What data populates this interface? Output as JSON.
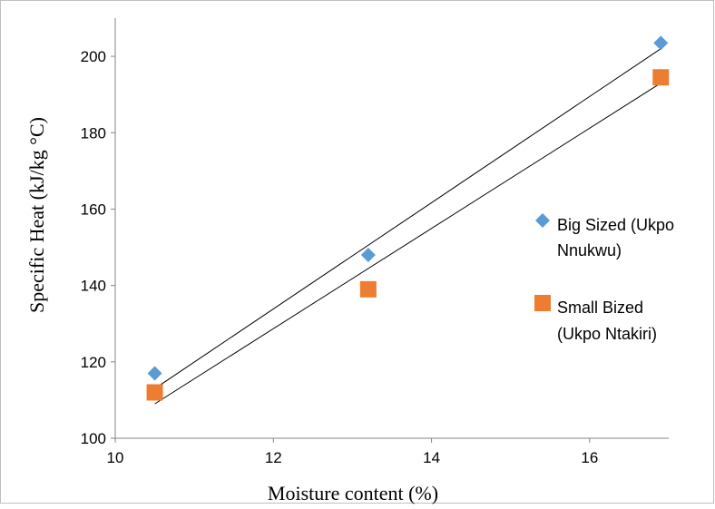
{
  "chart_data": {
    "type": "scatter",
    "title": "",
    "xlabel": "Moisture content (%)",
    "ylabel": "Specific Heat (kJ/kg °C)",
    "xlim": [
      10,
      17
    ],
    "ylim": [
      100,
      210
    ],
    "x_ticks": [
      "10",
      "12",
      "14",
      "16"
    ],
    "y_ticks": [
      "100",
      "120",
      "140",
      "160",
      "180",
      "200"
    ],
    "grid": false,
    "legend_position": "right",
    "series": [
      {
        "name": "Big Sized (Ukpo Nnukwu)",
        "legend_lines": [
          "Big Sized (Ukpo",
          "Nnukwu)"
        ],
        "marker": "diamond",
        "color": "#5B9BD5",
        "x": [
          10.5,
          13.2,
          16.9
        ],
        "y": [
          117,
          148,
          203.5
        ],
        "trendline": {
          "x": [
            10.5,
            16.9
          ],
          "y": [
            113,
            202
          ]
        }
      },
      {
        "name": "Small Bized (Ukpo Ntakiri)",
        "legend_lines": [
          "Small Bized",
          "(Ukpo Ntakiri)"
        ],
        "marker": "square",
        "color": "#ED7D31",
        "x": [
          10.5,
          13.2,
          16.9
        ],
        "y": [
          112,
          139,
          194.5
        ],
        "trendline": {
          "x": [
            10.5,
            16.9
          ],
          "y": [
            109,
            193
          ]
        }
      }
    ]
  }
}
